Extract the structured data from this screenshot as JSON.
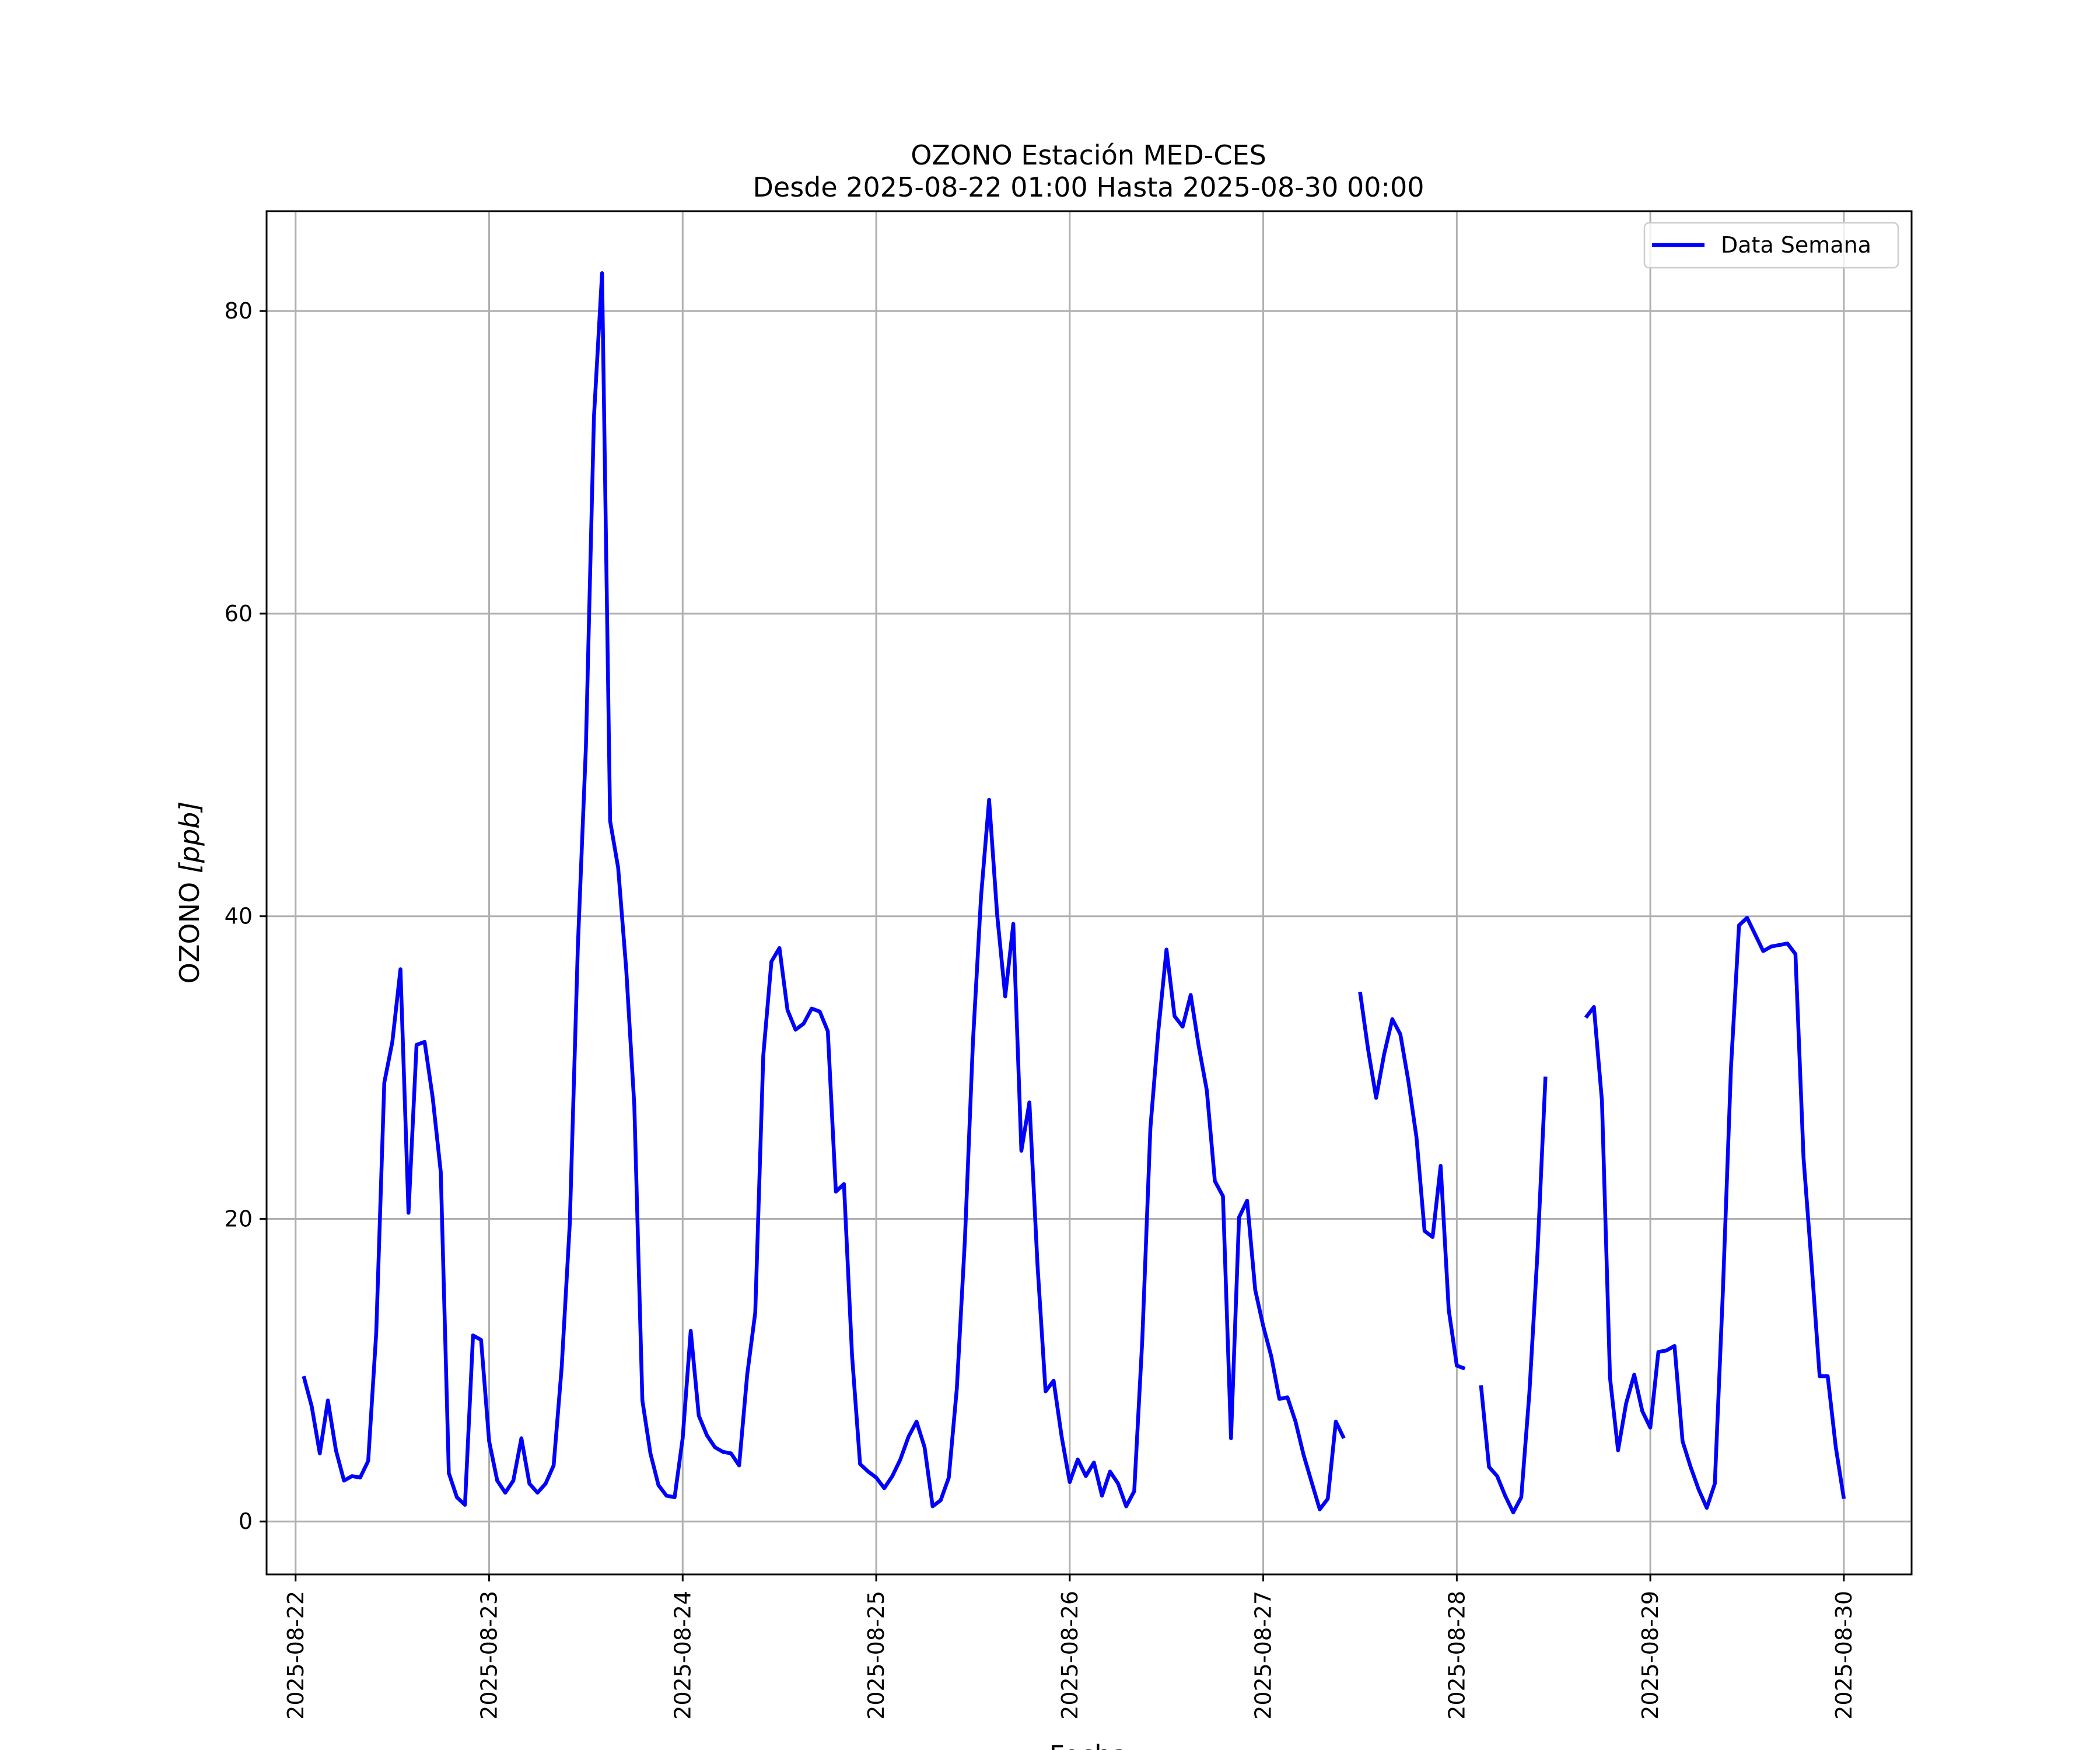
{
  "chart_data": {
    "type": "line",
    "title": "OZONO Estación MED-CES",
    "subtitle": "Desde 2025-08-22 01:00 Hasta 2025-08-30 00:00",
    "xlabel": "Fecha",
    "ylabel_main": "OZONO ",
    "ylabel_unit": "[ppb]",
    "xlim": [
      "2025-08-21 20:24",
      "2025-08-30 08:24"
    ],
    "ylim": [
      -3.5,
      86.6
    ],
    "x_ticks": [
      "2025-08-22",
      "2025-08-23",
      "2025-08-24",
      "2025-08-25",
      "2025-08-26",
      "2025-08-27",
      "2025-08-28",
      "2025-08-29",
      "2025-08-30"
    ],
    "y_ticks": [
      0,
      20,
      40,
      60,
      80
    ],
    "grid": true,
    "legend_position": "upper right",
    "series": [
      {
        "name": "Data Semana",
        "color": "#0000ff",
        "segments": [
          {
            "start": "2025-08-22 01:00",
            "values": [
              9.6,
              7.6,
              4.5,
              8.0,
              4.7,
              2.7,
              3.0,
              2.9,
              4.0,
              12.5,
              29.0,
              31.7,
              36.5,
              20.4,
              31.5,
              31.7,
              28.0,
              23.1,
              3.2,
              1.6,
              1.1,
              12.3,
              12.0,
              5.3,
              2.7,
              1.9,
              2.7,
              5.5,
              2.5,
              1.9,
              2.5,
              3.7,
              10.2,
              19.7,
              38.0,
              51.2,
              73.0,
              82.5,
              46.3,
              43.2,
              36.5,
              27.5,
              8.0,
              4.5,
              2.4,
              1.7,
              1.6,
              5.5,
              12.6,
              7.0,
              5.7,
              4.9,
              4.6,
              4.5,
              3.7,
              9.7,
              13.8,
              30.8,
              37.0,
              37.9,
              33.8,
              32.5,
              32.9,
              33.9,
              33.7,
              32.4,
              21.8,
              22.3,
              11.0,
              3.8,
              3.3,
              2.9,
              2.2,
              3.0,
              4.1,
              5.6,
              6.6,
              4.9,
              1.0,
              1.4,
              2.9,
              8.8,
              18.6,
              31.7,
              41.3,
              47.7,
              40.1,
              34.7,
              39.5,
              24.5,
              27.7,
              17.0,
              8.6,
              9.3,
              5.6,
              2.6,
              4.1,
              3.0,
              3.9,
              1.7,
              3.3,
              2.5,
              1.0,
              2.0,
              12.0,
              26.0,
              32.5,
              37.8,
              33.4,
              32.7,
              34.8,
              31.4,
              28.5,
              22.5,
              21.5,
              5.5,
              20.1,
              21.2,
              15.3,
              12.9,
              10.9,
              8.1,
              8.2,
              6.6,
              4.4,
              2.6,
              0.8,
              1.5,
              6.6,
              5.5
            ]
          },
          {
            "start": "2025-08-27 12:00",
            "values": [
              35.0,
              31.2,
              28.0,
              30.9,
              33.2,
              32.2,
              29.1,
              25.4,
              19.2,
              18.8,
              23.5,
              14.0,
              10.3,
              10.1
            ]
          },
          {
            "start": "2025-08-28 03:00",
            "values": [
              9.0,
              3.6,
              3.0,
              1.7,
              0.6,
              1.6,
              8.5,
              17.7,
              29.4
            ]
          },
          {
            "start": "2025-08-28 16:00",
            "values": [
              33.3,
              34.0,
              27.8,
              9.5,
              4.7,
              7.8,
              9.7,
              7.3,
              6.2,
              11.2,
              11.3,
              11.6,
              5.3,
              3.6,
              2.1,
              0.9,
              2.5,
              15.2,
              30.0,
              39.4,
              39.9,
              38.8,
              37.7,
              38.0,
              38.1,
              38.2,
              37.5,
              24.0,
              17.0,
              9.6,
              9.6,
              4.9,
              1.5
            ]
          }
        ]
      }
    ]
  }
}
